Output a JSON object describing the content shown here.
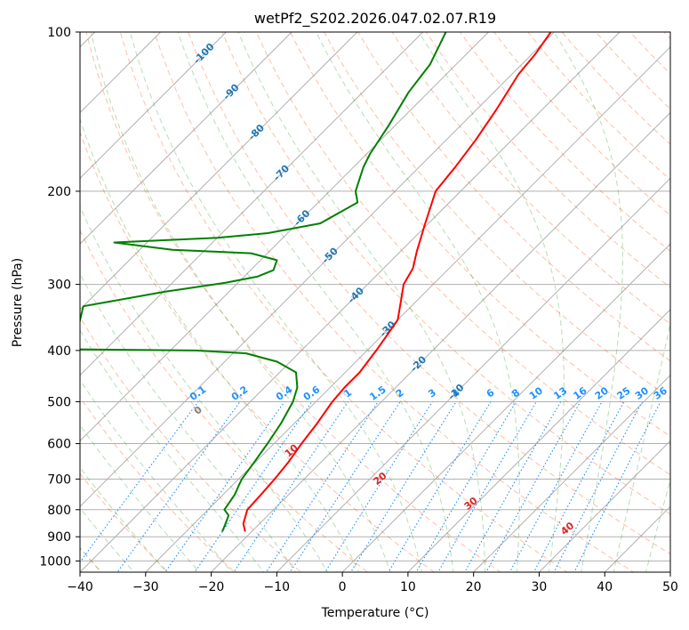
{
  "chart_data": {
    "type": "skew-t",
    "title": "wetPf2_S202.2026.047.02.07.R19",
    "xlabel": "Temperature (°C)",
    "ylabel": "Pressure (hPa)",
    "xlim": [
      -40,
      50
    ],
    "ylim_hpa": [
      1050,
      100
    ],
    "log_pressure_axis": true,
    "grid": true,
    "x_ticks": [
      "−40",
      "−30",
      "−20",
      "−10",
      "0",
      "10",
      "20",
      "30",
      "40",
      "50"
    ],
    "x_tick_values": [
      -40,
      -30,
      -20,
      -10,
      0,
      10,
      20,
      30,
      40,
      50
    ],
    "y_ticks": [
      "1000",
      "900",
      "800",
      "700",
      "600",
      "500",
      "400",
      "300",
      "200",
      "100"
    ],
    "y_tick_values": [
      1000,
      900,
      800,
      700,
      600,
      500,
      400,
      300,
      200,
      100
    ],
    "series": [
      {
        "role": "temperature",
        "color": "#ff0000",
        "points": [
          [
            880,
            -21
          ],
          [
            850,
            -22.5
          ],
          [
            800,
            -24
          ],
          [
            750,
            -24.2
          ],
          [
            700,
            -24.5
          ],
          [
            650,
            -25
          ],
          [
            600,
            -25.8
          ],
          [
            550,
            -26.5
          ],
          [
            500,
            -27.5
          ],
          [
            470,
            -27.8
          ],
          [
            440,
            -27.8
          ],
          [
            400,
            -28.6
          ],
          [
            370,
            -29.4
          ],
          [
            350,
            -30
          ],
          [
            320,
            -32.6
          ],
          [
            300,
            -34.5
          ],
          [
            280,
            -35.5
          ],
          [
            260,
            -37.5
          ],
          [
            230,
            -40.5
          ],
          [
            200,
            -43.8
          ],
          [
            180,
            -44.5
          ],
          [
            160,
            -45.5
          ],
          [
            140,
            -47
          ],
          [
            120,
            -49
          ],
          [
            110,
            -49.5
          ],
          [
            100,
            -50.5
          ]
        ]
      },
      {
        "role": "dewpoint",
        "color": "#008000",
        "points": [
          [
            880,
            -24.5
          ],
          [
            850,
            -25.2
          ],
          [
            820,
            -26
          ],
          [
            800,
            -27.5
          ],
          [
            750,
            -28.2
          ],
          [
            720,
            -29
          ],
          [
            700,
            -29.5
          ],
          [
            650,
            -30.2
          ],
          [
            600,
            -31
          ],
          [
            550,
            -32
          ],
          [
            500,
            -33.5
          ],
          [
            470,
            -35
          ],
          [
            440,
            -37.5
          ],
          [
            420,
            -42
          ],
          [
            405,
            -48
          ],
          [
            400,
            -56
          ],
          [
            398,
            -75
          ],
          [
            330,
            -80
          ],
          [
            310,
            -70
          ],
          [
            298,
            -62
          ],
          [
            290,
            -58
          ],
          [
            282,
            -56.5
          ],
          [
            270,
            -57.5
          ],
          [
            262,
            -62.5
          ],
          [
            258,
            -75
          ],
          [
            250,
            -85
          ],
          [
            245,
            -70
          ],
          [
            240,
            -63
          ],
          [
            230,
            -56.5
          ],
          [
            210,
            -54
          ],
          [
            200,
            -56
          ],
          [
            180,
            -58.5
          ],
          [
            170,
            -59.5
          ],
          [
            150,
            -61
          ],
          [
            130,
            -63
          ],
          [
            115,
            -64
          ],
          [
            100,
            -66.5
          ]
        ]
      }
    ],
    "dry_adiabats": {
      "color": "#ff4500",
      "theta_c": [
        -40,
        -30,
        -20,
        -10,
        0,
        10,
        20,
        30,
        40,
        50,
        60,
        70,
        80,
        90,
        100,
        110,
        120,
        130,
        140,
        150,
        160,
        170,
        180,
        190,
        200
      ],
      "labels": [
        "0",
        "10",
        "20",
        "30",
        "40"
      ],
      "label_theta_c": [
        0,
        10,
        20,
        30,
        40
      ],
      "label_pressure_hpa": [
        520,
        620,
        700,
        780,
        870
      ],
      "label_color": "#d62728"
    },
    "moist_adiabats": {
      "color": "#2ca02c",
      "start_temps_c": [
        -40,
        -35,
        -30,
        -25,
        -20,
        -15,
        -10,
        -5,
        0,
        5,
        10,
        15,
        20,
        25,
        30,
        35,
        40,
        45
      ]
    },
    "isotherm_labels": {
      "color": "#1f77b4",
      "labels": [
        "-100",
        "-90",
        "-80",
        "-70",
        "-60",
        "-50",
        "-40",
        "-30",
        "-20",
        "-10"
      ],
      "values": [
        -100,
        -90,
        -80,
        -70,
        -60,
        -50,
        -40,
        -30,
        -20,
        -10
      ],
      "label_pressure_hpa": [
        110,
        130,
        155,
        185,
        225,
        265,
        315,
        365,
        425,
        480
      ]
    },
    "mixing_ratio": {
      "color": "#1e90ff",
      "label_pressure_hpa": 500,
      "values_gkg": [
        0.1,
        0.2,
        0.4,
        0.6,
        1,
        1.5,
        2,
        3,
        4,
        6,
        8,
        10,
        13,
        16,
        20,
        25,
        30,
        36
      ],
      "labels": [
        "0.1",
        "0.2",
        "0.4",
        "0.6",
        "1",
        "1.5",
        "2",
        "3",
        "4",
        "6",
        "8",
        "10",
        "13",
        "16",
        "20",
        "25",
        "30",
        "36"
      ]
    }
  }
}
